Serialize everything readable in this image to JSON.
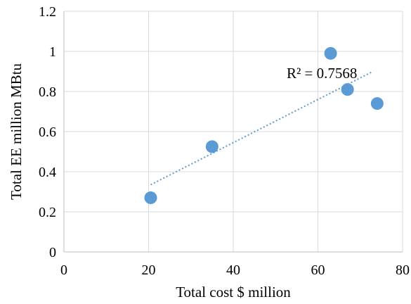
{
  "chart_data": {
    "type": "scatter",
    "title": "",
    "xlabel": "Total cost $ million",
    "ylabel": "Total EE million MBtu",
    "xlim": [
      0,
      80
    ],
    "ylim": [
      0,
      1.2
    ],
    "xticks": [
      0,
      20,
      40,
      60,
      80
    ],
    "xtick_labels": [
      "0",
      "20",
      "40",
      "60",
      "80"
    ],
    "yticks": [
      0,
      0.2,
      0.4,
      0.6,
      0.8,
      1.0,
      1.2
    ],
    "ytick_labels": [
      "0",
      "0.2",
      "0.4",
      "0.6",
      "0.8",
      "1",
      "1.2"
    ],
    "grid": true,
    "legend": "none",
    "series": [
      {
        "x": [
          20.5,
          35,
          63,
          67,
          74
        ],
        "y": [
          0.27,
          0.525,
          0.99,
          0.81,
          0.74
        ]
      }
    ],
    "trendline": {
      "type": "linear",
      "style": "dotted",
      "x_range": [
        20.5,
        73
      ],
      "y_range": [
        0.335,
        0.9
      ],
      "label": "R² = 0.7568"
    },
    "colors": {
      "marker": "#5B9BD5",
      "trendline": "#5B9BD5",
      "grid": "#D9D9D9",
      "axis": "#BFBFBF"
    }
  }
}
